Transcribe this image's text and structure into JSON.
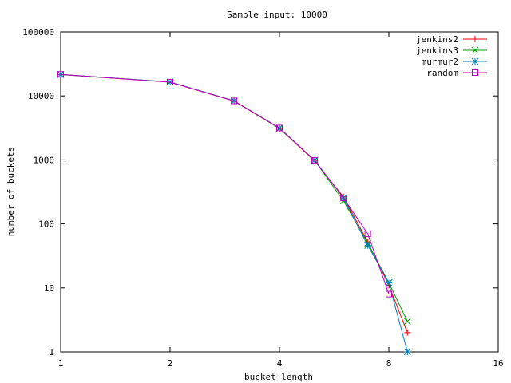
{
  "chart_data": {
    "type": "line",
    "title": "Sample input: 10000",
    "xlabel": "bucket length",
    "ylabel": "number of buckets",
    "x_scale": "log2",
    "y_scale": "log10",
    "xlim": [
      1,
      16
    ],
    "ylim": [
      1,
      100000
    ],
    "x_ticks": [
      1,
      2,
      4,
      8,
      16
    ],
    "x_tick_labels": [
      "1",
      "2",
      "4",
      "8",
      "16"
    ],
    "y_ticks": [
      1,
      10,
      100,
      1000,
      10000,
      100000
    ],
    "y_tick_labels": [
      "1",
      "10",
      "100",
      "1000",
      "10000",
      "100000"
    ],
    "grid": false,
    "legend_position": "top-right",
    "series": [
      {
        "name": "jenkins2",
        "color": "#ff0000",
        "marker": "plus",
        "x": [
          1,
          2,
          3,
          4,
          5,
          6,
          7,
          8,
          9
        ],
        "y": [
          21500,
          16400,
          8300,
          3100,
          960,
          265,
          52,
          11,
          2
        ]
      },
      {
        "name": "jenkins3",
        "color": "#00a000",
        "marker": "cross",
        "x": [
          1,
          2,
          3,
          4,
          5,
          6,
          7,
          8,
          9
        ],
        "y": [
          21700,
          16500,
          8400,
          3100,
          980,
          230,
          50,
          12,
          3
        ]
      },
      {
        "name": "murmur2",
        "color": "#0080c0",
        "marker": "star",
        "x": [
          1,
          2,
          3,
          4,
          5,
          6,
          7,
          8,
          9
        ],
        "y": [
          21600,
          16500,
          8400,
          3150,
          990,
          255,
          46,
          12,
          1
        ]
      },
      {
        "name": "random",
        "color": "#c000c0",
        "marker": "square",
        "x": [
          1,
          2,
          3,
          4,
          5,
          6,
          7,
          8
        ],
        "y": [
          21700,
          16400,
          8350,
          3150,
          980,
          255,
          70,
          8
        ]
      }
    ]
  }
}
